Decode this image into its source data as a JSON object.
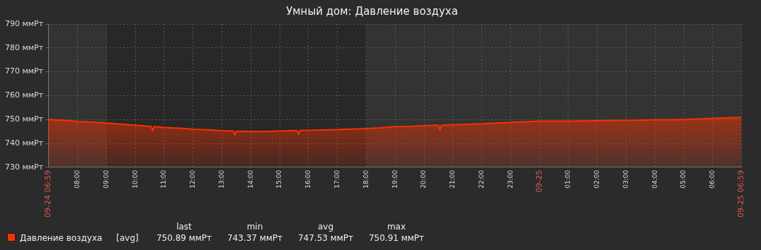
{
  "chart_data": {
    "type": "area",
    "title": "Умный дом: Давление воздуха",
    "x": [
      "--09-24T06:59",
      "--09-24T07:30",
      "--09-24T08:00",
      "--09-24T08:30",
      "--09-24T09:00",
      "--09-24T09:30",
      "--09-24T10:00",
      "--09-24T10:33",
      "--09-24T10:36",
      "--09-24T10:39",
      "--09-24T11:00",
      "--09-24T11:30",
      "--09-24T12:00",
      "--09-24T12:30",
      "--09-24T13:00",
      "--09-24T13:24",
      "--09-24T13:27",
      "--09-24T13:30",
      "--09-24T14:00",
      "--09-24T14:30",
      "--09-24T15:00",
      "--09-24T15:36",
      "--09-24T15:39",
      "--09-24T15:42",
      "--09-24T16:00",
      "--09-24T16:30",
      "--09-24T17:00",
      "--09-24T17:30",
      "--09-24T18:00",
      "--09-24T18:30",
      "--09-24T19:00",
      "--09-24T19:30",
      "--09-24T20:00",
      "--09-24T20:30",
      "--09-24T20:33",
      "--09-24T20:36",
      "--09-24T21:00",
      "--09-24T21:30",
      "--09-24T22:00",
      "--09-24T22:30",
      "--09-24T23:00",
      "--09-24T23:30",
      "--09-25T00:00",
      "--09-25T00:30",
      "--09-25T01:00",
      "--09-25T01:30",
      "--09-25T02:00",
      "--09-25T02:30",
      "--09-25T03:00",
      "--09-25T03:30",
      "--09-25T04:00",
      "--09-25T04:30",
      "--09-25T05:00",
      "--09-25T05:30",
      "--09-25T06:00",
      "--09-25T06:30",
      "--09-25T06:59"
    ],
    "series": [
      {
        "name": "Давление воздуха",
        "color": "#f63100",
        "values": [
          750.0,
          749.7,
          749.2,
          748.9,
          748.5,
          748.1,
          747.6,
          747.1,
          745.3,
          747.0,
          746.7,
          746.4,
          745.9,
          745.7,
          745.3,
          745.2,
          743.4,
          745.1,
          745.0,
          745.0,
          745.2,
          745.4,
          743.8,
          745.4,
          745.5,
          745.6,
          745.8,
          746.0,
          746.2,
          746.5,
          747.0,
          747.1,
          747.4,
          747.6,
          745.6,
          747.6,
          747.8,
          748.0,
          748.2,
          748.5,
          748.8,
          749.0,
          749.3,
          749.3,
          749.3,
          749.4,
          749.5,
          749.6,
          749.6,
          749.7,
          749.9,
          749.9,
          750.0,
          750.2,
          750.5,
          750.7,
          750.9
        ]
      }
    ],
    "xlim": [
      "--09-24T06:59",
      "--09-25T06:59"
    ],
    "xticks": [
      {
        "value": "--09-24T06:59",
        "label": "09-24 06:59"
      },
      {
        "value": "--09-24T08:00",
        "label": "08:00"
      },
      {
        "value": "--09-24T09:00",
        "label": "09:00"
      },
      {
        "value": "--09-24T10:00",
        "label": "10:00"
      },
      {
        "value": "--09-24T11:00",
        "label": "11:00"
      },
      {
        "value": "--09-24T12:00",
        "label": "12:00"
      },
      {
        "value": "--09-24T13:00",
        "label": "13:00"
      },
      {
        "value": "--09-24T14:00",
        "label": "14:00"
      },
      {
        "value": "--09-24T15:00",
        "label": "15:00"
      },
      {
        "value": "--09-24T16:00",
        "label": "16:00"
      },
      {
        "value": "--09-24T17:00",
        "label": "17:00"
      },
      {
        "value": "--09-24T18:00",
        "label": "18:00"
      },
      {
        "value": "--09-24T19:00",
        "label": "19:00"
      },
      {
        "value": "--09-24T20:00",
        "label": "20:00"
      },
      {
        "value": "--09-24T21:00",
        "label": "21:00"
      },
      {
        "value": "--09-24T22:00",
        "label": "22:00"
      },
      {
        "value": "--09-24T23:00",
        "label": "23:00"
      },
      {
        "value": "--09-25T00:00",
        "label": "09-25"
      },
      {
        "value": "--09-25T01:00",
        "label": "01:00"
      },
      {
        "value": "--09-25T02:00",
        "label": "02:00"
      },
      {
        "value": "--09-25T03:00",
        "label": "03:00"
      },
      {
        "value": "--09-25T04:00",
        "label": "04:00"
      },
      {
        "value": "--09-25T05:00",
        "label": "05:00"
      },
      {
        "value": "--09-25T06:00",
        "label": "06:00"
      },
      {
        "value": "--09-25T06:59",
        "label": "09-25 06:59"
      }
    ],
    "ylim": [
      730,
      790
    ],
    "yticks": [
      {
        "value": 730,
        "label": "730 ммРт"
      },
      {
        "value": 740,
        "label": "740 ммРт"
      },
      {
        "value": 750,
        "label": "750 ммРт"
      },
      {
        "value": 760,
        "label": "760 ммРт"
      },
      {
        "value": 770,
        "label": "770 ммРт"
      },
      {
        "value": 780,
        "label": "780 ммРт"
      },
      {
        "value": 790,
        "label": "790 ммРт"
      }
    ],
    "grid": true,
    "legend": "bottom",
    "bands": [
      {
        "axis": "x",
        "from": "--09-24T09:00",
        "to": "--09-24T18:00",
        "color": "#282828"
      }
    ],
    "annotations": [
      "[avg]",
      "last",
      "750.89 ммРт",
      "min",
      "743.37 ммРт",
      "avg",
      "747.53 ммРт",
      "max",
      "750.91 ммРт"
    ]
  }
}
